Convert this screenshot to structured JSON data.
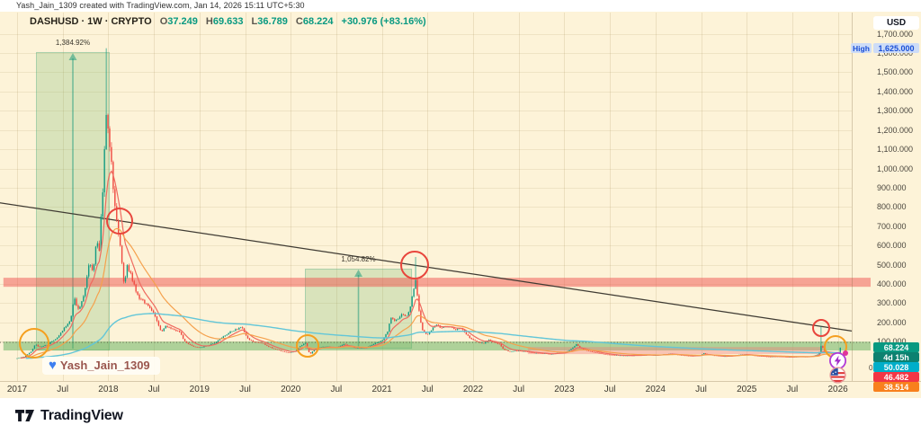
{
  "attribution": "Yash_Jain_1309 created with TradingView.com, Jan 14, 2026 15:11 UTC+5:30",
  "header": {
    "symbol_line": "DASHUSD · 1W · CRYPTO",
    "ohlc": [
      {
        "k": "O",
        "v": "37.249"
      },
      {
        "k": "H",
        "v": "69.633"
      },
      {
        "k": "L",
        "v": "36.789"
      },
      {
        "k": "C",
        "v": "68.224"
      }
    ],
    "change": "+30.976 (+83.16%)"
  },
  "watermark": {
    "heart": "♥",
    "name": "Yash_Jain_1309"
  },
  "footer": {
    "brand": "TradingView"
  },
  "price_scale": {
    "currency": "USD",
    "ticks": [
      {
        "v": 1700,
        "t": "1,700.000"
      },
      {
        "v": 1600,
        "t": "1,600.000"
      },
      {
        "v": 1500,
        "t": "1,500.000"
      },
      {
        "v": 1400,
        "t": "1,400.000"
      },
      {
        "v": 1300,
        "t": "1,300.000"
      },
      {
        "v": 1200,
        "t": "1,200.000"
      },
      {
        "v": 1100,
        "t": "1,100.000"
      },
      {
        "v": 1000,
        "t": "1,000.000"
      },
      {
        "v": 900,
        "t": "900.000"
      },
      {
        "v": 800,
        "t": "800.000"
      },
      {
        "v": 700,
        "t": "700.000"
      },
      {
        "v": 600,
        "t": "600.000"
      },
      {
        "v": 500,
        "t": "500.000"
      },
      {
        "v": 400,
        "t": "400.000"
      },
      {
        "v": 300,
        "t": "300.000"
      },
      {
        "v": 200,
        "t": "200.000"
      },
      {
        "v": 100,
        "t": "100.000"
      }
    ],
    "zero": "0",
    "high_label": {
      "tag": "High",
      "text": "1,625.000",
      "value": 1625
    },
    "current": {
      "text": "68.224",
      "value": 68.224,
      "bg": "#089981"
    },
    "countdown": {
      "text": "4d 15h",
      "bg": "#0d8170"
    },
    "ma_labels": [
      {
        "text": "50.028",
        "value": 50.028,
        "bg": "#00aec9"
      },
      {
        "text": "46.482",
        "value": 46.482,
        "bg": "#f23645"
      },
      {
        "text": "38.514",
        "value": 38.514,
        "bg": "#f8801d"
      }
    ]
  },
  "time_scale": {
    "ticks": [
      {
        "v": 2017,
        "t": "2017"
      },
      {
        "v": 2017.5,
        "t": "Jul"
      },
      {
        "v": 2018,
        "t": "2018"
      },
      {
        "v": 2018.5,
        "t": "Jul"
      },
      {
        "v": 2019,
        "t": "2019"
      },
      {
        "v": 2019.5,
        "t": "Jul"
      },
      {
        "v": 2020,
        "t": "2020"
      },
      {
        "v": 2020.5,
        "t": "Jul"
      },
      {
        "v": 2021,
        "t": "2021"
      },
      {
        "v": 2021.5,
        "t": "Jul"
      },
      {
        "v": 2022,
        "t": "2022"
      },
      {
        "v": 2022.5,
        "t": "Jul"
      },
      {
        "v": 2023,
        "t": "2023"
      },
      {
        "v": 2023.5,
        "t": "Jul"
      },
      {
        "v": 2024,
        "t": "2024"
      },
      {
        "v": 2024.5,
        "t": "Jul"
      },
      {
        "v": 2025,
        "t": "2025"
      },
      {
        "v": 2025.5,
        "t": "Jul"
      },
      {
        "v": 2026,
        "t": "2026"
      }
    ]
  },
  "chart_data": {
    "type": "candlestick",
    "symbol": "DASHUSD",
    "interval": "1W",
    "x_axis_range": [
      2016.85,
      2026.25
    ],
    "y_axis_range": [
      0,
      1810
    ],
    "current_ohlc": {
      "open": 37.249,
      "high": 69.633,
      "low": 36.789,
      "close": 68.224,
      "change": 30.976,
      "change_pct": 83.16
    },
    "all_time_high": 1625,
    "close_path": [
      [
        2017.0,
        13
      ],
      [
        2017.08,
        22
      ],
      [
        2017.16,
        50
      ],
      [
        2017.2,
        88
      ],
      [
        2017.25,
        70
      ],
      [
        2017.33,
        84
      ],
      [
        2017.42,
        112
      ],
      [
        2017.5,
        158
      ],
      [
        2017.58,
        205
      ],
      [
        2017.63,
        325
      ],
      [
        2017.67,
        268
      ],
      [
        2017.71,
        305
      ],
      [
        2017.75,
        385
      ],
      [
        2017.79,
        515
      ],
      [
        2017.83,
        455
      ],
      [
        2017.87,
        635
      ],
      [
        2017.9,
        575
      ],
      [
        2017.94,
        895
      ],
      [
        2017.98,
        1305
      ],
      [
        2018.02,
        1115
      ],
      [
        2018.06,
        875
      ],
      [
        2018.1,
        700
      ],
      [
        2018.14,
        555
      ],
      [
        2018.17,
        400
      ],
      [
        2018.21,
        495
      ],
      [
        2018.25,
        450
      ],
      [
        2018.29,
        378
      ],
      [
        2018.33,
        328
      ],
      [
        2018.42,
        298
      ],
      [
        2018.5,
        243
      ],
      [
        2018.58,
        150
      ],
      [
        2018.63,
        183
      ],
      [
        2018.71,
        163
      ],
      [
        2018.79,
        148
      ],
      [
        2018.83,
        104
      ],
      [
        2018.88,
        89
      ],
      [
        2018.92,
        77
      ],
      [
        2019.0,
        67
      ],
      [
        2019.08,
        79
      ],
      [
        2019.17,
        94
      ],
      [
        2019.25,
        121
      ],
      [
        2019.33,
        151
      ],
      [
        2019.42,
        167
      ],
      [
        2019.46,
        177
      ],
      [
        2019.54,
        107
      ],
      [
        2019.63,
        97
      ],
      [
        2019.71,
        87
      ],
      [
        2019.79,
        67
      ],
      [
        2019.88,
        54
      ],
      [
        2019.96,
        42
      ],
      [
        2020.04,
        47
      ],
      [
        2020.1,
        74
      ],
      [
        2020.16,
        94
      ],
      [
        2020.21,
        33
      ],
      [
        2020.27,
        64
      ],
      [
        2020.33,
        71
      ],
      [
        2020.42,
        73
      ],
      [
        2020.5,
        69
      ],
      [
        2020.58,
        87
      ],
      [
        2020.65,
        74
      ],
      [
        2020.75,
        65
      ],
      [
        2020.83,
        69
      ],
      [
        2020.92,
        89
      ],
      [
        2021.0,
        103
      ],
      [
        2021.06,
        148
      ],
      [
        2021.1,
        228
      ],
      [
        2021.15,
        204
      ],
      [
        2021.21,
        243
      ],
      [
        2021.27,
        228
      ],
      [
        2021.31,
        278
      ],
      [
        2021.35,
        375
      ],
      [
        2021.37,
        428
      ],
      [
        2021.4,
        288
      ],
      [
        2021.44,
        158
      ],
      [
        2021.5,
        137
      ],
      [
        2021.56,
        173
      ],
      [
        2021.6,
        190
      ],
      [
        2021.65,
        168
      ],
      [
        2021.71,
        180
      ],
      [
        2021.75,
        176
      ],
      [
        2021.81,
        163
      ],
      [
        2021.87,
        170
      ],
      [
        2021.92,
        138
      ],
      [
        2022.0,
        107
      ],
      [
        2022.06,
        96
      ],
      [
        2022.12,
        91
      ],
      [
        2022.17,
        111
      ],
      [
        2022.23,
        95
      ],
      [
        2022.29,
        87
      ],
      [
        2022.33,
        61
      ],
      [
        2022.4,
        47
      ],
      [
        2022.48,
        52
      ],
      [
        2022.56,
        49
      ],
      [
        2022.63,
        42
      ],
      [
        2022.71,
        40
      ],
      [
        2022.79,
        38
      ],
      [
        2022.85,
        33
      ],
      [
        2022.92,
        40
      ],
      [
        2023.0,
        43
      ],
      [
        2023.06,
        57
      ],
      [
        2023.1,
        71
      ],
      [
        2023.13,
        87
      ],
      [
        2023.17,
        69
      ],
      [
        2023.21,
        59
      ],
      [
        2023.27,
        51
      ],
      [
        2023.33,
        43
      ],
      [
        2023.42,
        36
      ],
      [
        2023.5,
        31
      ],
      [
        2023.58,
        29
      ],
      [
        2023.67,
        27
      ],
      [
        2023.75,
        28
      ],
      [
        2023.83,
        29
      ],
      [
        2023.92,
        31
      ],
      [
        2024.0,
        29
      ],
      [
        2024.08,
        33
      ],
      [
        2024.17,
        37
      ],
      [
        2024.25,
        31
      ],
      [
        2024.33,
        27
      ],
      [
        2024.42,
        25
      ],
      [
        2024.5,
        30
      ],
      [
        2024.53,
        40
      ],
      [
        2024.58,
        32
      ],
      [
        2024.67,
        26
      ],
      [
        2024.75,
        23
      ],
      [
        2024.83,
        25
      ],
      [
        2024.92,
        32
      ],
      [
        2025.0,
        35
      ],
      [
        2025.08,
        27
      ],
      [
        2025.17,
        24
      ],
      [
        2025.25,
        21
      ],
      [
        2025.33,
        23
      ],
      [
        2025.42,
        21
      ],
      [
        2025.5,
        20
      ],
      [
        2025.58,
        22
      ],
      [
        2025.67,
        21
      ],
      [
        2025.75,
        28
      ],
      [
        2025.79,
        34
      ],
      [
        2025.82,
        85
      ],
      [
        2025.85,
        52
      ],
      [
        2025.88,
        44
      ],
      [
        2025.92,
        40
      ],
      [
        2025.98,
        37.5
      ],
      [
        2026.01,
        37.2
      ],
      [
        2026.03,
        68.2
      ]
    ],
    "overrides": [
      {
        "t": 2017.98,
        "high": 1625
      },
      {
        "t": 2021.37,
        "high": 540
      },
      {
        "t": 2025.82,
        "high": 178
      },
      {
        "t": 2026.03,
        "open": 37.249,
        "high": 69.633,
        "low": 36.789,
        "close": 68.224
      }
    ],
    "moving_averages": [
      {
        "name": "fast-ema",
        "color": "#ef6a5f",
        "alpha": 0.22,
        "start": 2,
        "width": 1.2,
        "current": 46.482
      },
      {
        "name": "mid-ema",
        "color": "#f5a14d",
        "alpha": 0.075,
        "start": 6,
        "width": 1.2,
        "current": 38.514
      },
      {
        "name": "slow-ema",
        "color": "#62c6d8",
        "alpha": 0.012,
        "start": 5,
        "width": 1.4,
        "current": 50.028
      }
    ],
    "trendline": {
      "x": [
        2016.802,
        2026.152
      ],
      "p": [
        822,
        155
      ],
      "color": "#3f3b33"
    },
    "zones": [
      {
        "name": "resistance-band",
        "x": [
          2016.85,
          2026.36
        ],
        "p": [
          385,
          432
        ],
        "fill": "rgba(239,83,80,0.50)"
      },
      {
        "name": "support-band",
        "x": [
          2016.85,
          2026.36
        ],
        "p": [
          54,
          100
        ],
        "fill": "rgba(96,175,90,0.50)"
      },
      {
        "name": "lower-pink-band",
        "x": [
          2022.6,
          2025.86
        ],
        "p": [
          35,
          72
        ],
        "fill": "rgba(239,120,120,0.38)"
      }
    ],
    "range_boxes": [
      {
        "label": "1,384.92%",
        "x": [
          2017.207,
          2018.016
        ],
        "p": [
          54,
          1605
        ]
      },
      {
        "label": "1,054.82%",
        "x": [
          2020.156,
          2021.33
        ],
        "p": [
          63,
          479
        ]
      }
    ],
    "circles": [
      {
        "color": "#e8453c",
        "t": 2018.12,
        "p": 727,
        "r": 15
      },
      {
        "color": "#e8453c",
        "t": 2021.36,
        "p": 500,
        "r": 16
      },
      {
        "color": "#e8453c",
        "t": 2025.82,
        "p": 172,
        "r": 10
      },
      {
        "color": "#f59f1e",
        "t": 2017.19,
        "p": 91,
        "r": 17
      },
      {
        "color": "#f59f1e",
        "t": 2020.19,
        "p": 79,
        "r": 13
      },
      {
        "color": "#f59f1e",
        "t": 2025.97,
        "p": 73,
        "r": 13
      }
    ],
    "dotted_line_price": 96,
    "candle_colors": {
      "up": "#129a82",
      "down": "#f0483f"
    }
  }
}
